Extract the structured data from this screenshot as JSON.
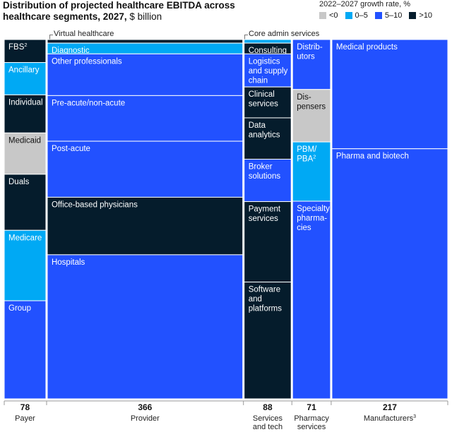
{
  "chart_data": {
    "type": "marimekko",
    "title": "Distribution of projected healthcare EBITDA across healthcare segments, 2027,",
    "title_unit": "$ billion",
    "legend": {
      "title": "2022–2027 growth rate, %",
      "items": [
        {
          "label": "<0",
          "color": "#c8c8c8"
        },
        {
          "label": "0–5",
          "color": "#00a9f4"
        },
        {
          "label": "5–10",
          "color": "#2251ff"
        },
        {
          "label": ">10",
          "color": "#051c2c"
        }
      ]
    },
    "group_labels": [
      {
        "label": "Virtual healthcare",
        "column": "Provider"
      },
      {
        "label": "Core admin services",
        "column": "Services and tech"
      }
    ],
    "columns": [
      {
        "name": "Payer",
        "name_lines": [
          "Payer"
        ],
        "value": "78",
        "segments": [
          {
            "label": "FBS",
            "sup": "2",
            "share": 0.064,
            "growth": ">10"
          },
          {
            "label": "Ancillary",
            "share": 0.09,
            "growth": "0–5"
          },
          {
            "label": "Individual",
            "share": 0.106,
            "growth": ">10"
          },
          {
            "label": "Medicaid",
            "share": 0.115,
            "growth": "<0"
          },
          {
            "label": "Duals",
            "share": 0.156,
            "growth": ">10"
          },
          {
            "label": "Medicare",
            "share": 0.196,
            "growth": "0–5"
          },
          {
            "label": "Group",
            "share": 0.273,
            "growth": "5–10"
          }
        ]
      },
      {
        "name": "Provider",
        "name_lines": [
          "Provider"
        ],
        "value": "366",
        "segments": [
          {
            "label": "",
            "share": 0.01,
            "growth": ">10"
          },
          {
            "label": "Diagnostic",
            "share": 0.03,
            "growth": "0–5"
          },
          {
            "label": "Other professionals",
            "share": 0.116,
            "growth": "5–10"
          },
          {
            "label": "Pre-acute/non-acute",
            "share": 0.127,
            "growth": "5–10"
          },
          {
            "label": "Post-acute",
            "share": 0.156,
            "growth": "5–10"
          },
          {
            "label": "Office-based physicians",
            "share": 0.16,
            "growth": ">10"
          },
          {
            "label": "Hospitals",
            "share": 0.401,
            "growth": "5–10"
          }
        ]
      },
      {
        "name": "Services and tech",
        "name_lines": [
          "Services",
          "and tech"
        ],
        "value": "88",
        "segments": [
          {
            "label": "",
            "share": 0.01,
            "growth": "0–5"
          },
          {
            "label": "Consulting",
            "share": 0.03,
            "growth": ">10"
          },
          {
            "label": "Logistics and supply chain",
            "lines": [
              "Logistics",
              "and supply",
              "chain"
            ],
            "share": 0.092,
            "growth": "5–10"
          },
          {
            "label": "Clinical services",
            "lines": [
              "Clinical",
              "services"
            ],
            "share": 0.086,
            "growth": ">10"
          },
          {
            "label": "Data analytics",
            "lines": [
              "Data",
              "analytics"
            ],
            "share": 0.115,
            "growth": ">10"
          },
          {
            "label": "Broker solutions",
            "lines": [
              "Broker",
              "solutions"
            ],
            "share": 0.118,
            "growth": "5–10"
          },
          {
            "label": "Payment services",
            "lines": [
              "Payment",
              "services"
            ],
            "share": 0.224,
            "growth": ">10"
          },
          {
            "label": "Software and platforms",
            "lines": [
              "Software",
              "and",
              "platforms"
            ],
            "share": 0.325,
            "growth": ">10"
          }
        ]
      },
      {
        "name": "Pharmacy services",
        "name_lines": [
          "Pharmacy",
          "services"
        ],
        "value": "71",
        "segments": [
          {
            "label": "Distributors",
            "lines": [
              "Distrib-",
              "utors"
            ],
            "share": 0.139,
            "growth": "5–10"
          },
          {
            "label": "Dispensers",
            "lines": [
              "Dis-",
              "pensers"
            ],
            "share": 0.146,
            "growth": "<0"
          },
          {
            "label": "PBM/PBA",
            "lines": [
              "PBM/",
              "PBA"
            ],
            "sup": "2",
            "share": 0.165,
            "growth": "0–5"
          },
          {
            "label": "Specialty pharmacies",
            "lines": [
              "Specialty",
              "pharma-",
              "cies"
            ],
            "share": 0.55,
            "growth": "5–10"
          }
        ]
      },
      {
        "name": "Manufacturers",
        "name_lines": [
          "Manufacturers"
        ],
        "name_sup": "3",
        "value": "217",
        "segments": [
          {
            "label": "Medical products",
            "share": 0.304,
            "growth": "5–10"
          },
          {
            "label": "Pharma and biotech",
            "share": 0.696,
            "growth": "5–10"
          }
        ]
      }
    ]
  }
}
